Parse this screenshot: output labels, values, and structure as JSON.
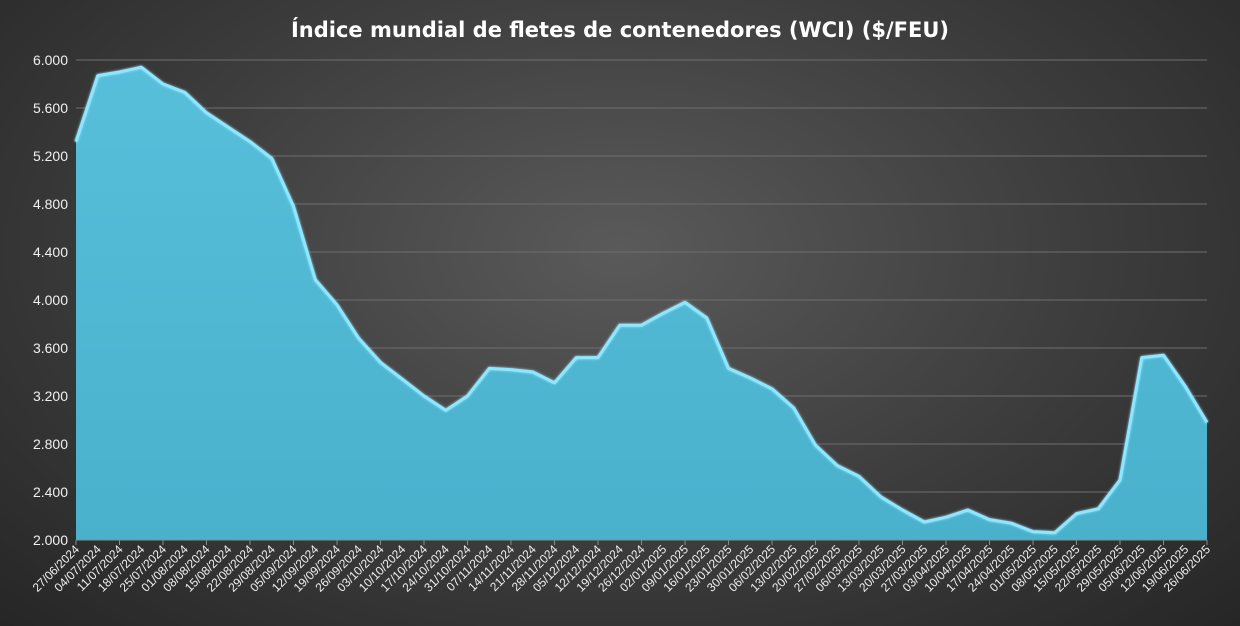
{
  "chart_data": {
    "type": "area",
    "title": "Índice mundial de fletes de contenedores (WCI) ($/FEU)",
    "xlabel": "",
    "ylabel": "",
    "ylim": [
      2000,
      6000
    ],
    "yticks": [
      2000,
      2400,
      2800,
      3200,
      3600,
      4000,
      4400,
      4800,
      5200,
      5600,
      6000
    ],
    "ytick_labels": [
      "2.000",
      "2.400",
      "2.800",
      "3.200",
      "3.600",
      "4.000",
      "4.400",
      "4.800",
      "5.200",
      "5.600",
      "6.000"
    ],
    "grid": true,
    "legend": "none",
    "fill_color": "#4fb8d3",
    "line_color": "#8fe6ff",
    "x": [
      "27/06/2024",
      "04/07/2024",
      "11/07/2024",
      "18/07/2024",
      "25/07/2024",
      "01/08/2024",
      "08/08/2024",
      "15/08/2024",
      "22/08/2024",
      "29/08/2024",
      "05/09/2024",
      "12/09/2024",
      "19/09/2024",
      "26/09/2024",
      "03/10/2024",
      "10/10/2024",
      "17/10/2024",
      "24/10/2024",
      "31/10/2024",
      "07/11/2024",
      "14/11/2024",
      "21/11/2024",
      "28/11/2024",
      "05/12/2024",
      "12/12/2024",
      "19/12/2024",
      "26/12/2024",
      "02/01/2025",
      "09/01/2025",
      "16/01/2025",
      "23/01/2025",
      "30/01/2025",
      "06/02/2025",
      "13/02/2025",
      "20/02/2025",
      "27/02/2025",
      "06/03/2025",
      "13/03/2025",
      "20/03/2025",
      "27/03/2025",
      "03/04/2025",
      "10/04/2025",
      "17/04/2025",
      "24/04/2025",
      "01/05/2025",
      "08/05/2025",
      "15/05/2025",
      "22/05/2025",
      "29/05/2025",
      "05/06/2025",
      "12/06/2025",
      "19/06/2025",
      "26/06/2025"
    ],
    "values": [
      5320,
      5870,
      5900,
      5940,
      5800,
      5730,
      5560,
      5440,
      5320,
      5180,
      4780,
      4170,
      3960,
      3680,
      3480,
      3340,
      3200,
      3080,
      3200,
      3430,
      3420,
      3400,
      3310,
      3520,
      3520,
      3790,
      3790,
      3890,
      3980,
      3850,
      3430,
      3350,
      3260,
      3100,
      2790,
      2620,
      2530,
      2360,
      2250,
      2150,
      2190,
      2250,
      2170,
      2140,
      2070,
      2060,
      2220,
      2260,
      2500,
      3520,
      3540,
      3280,
      2980
    ]
  }
}
